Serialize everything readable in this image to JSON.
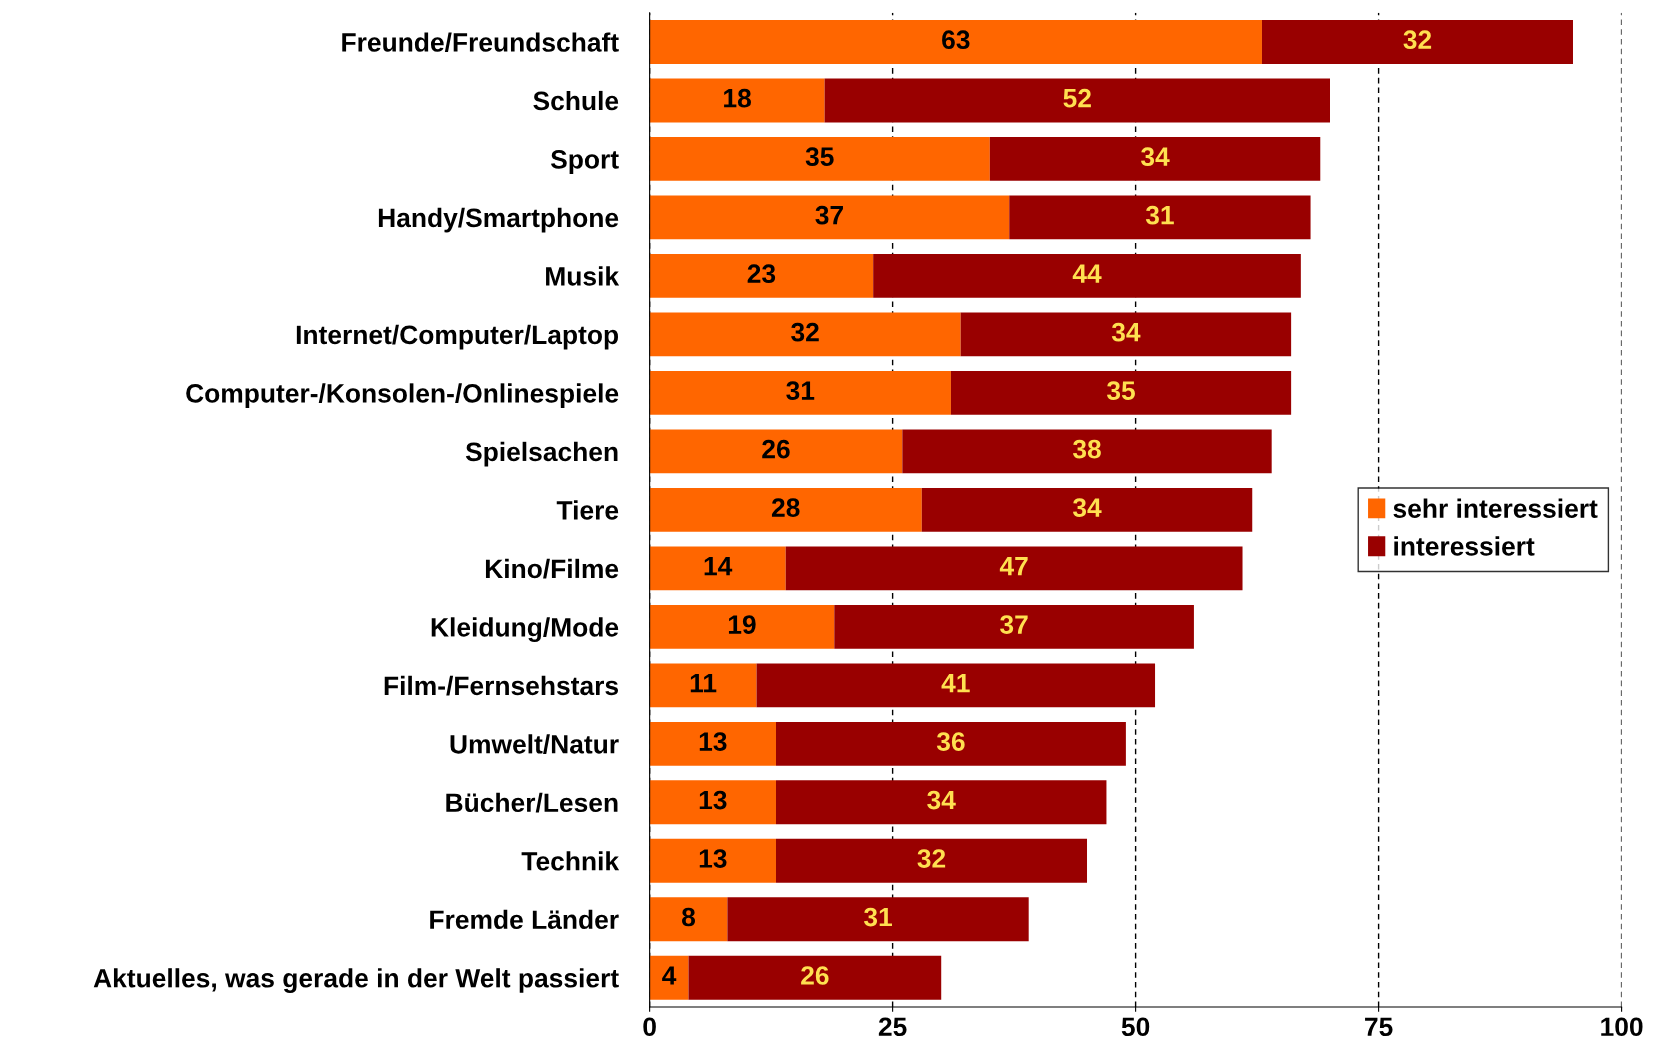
{
  "chart_data": {
    "type": "bar",
    "orientation": "horizontal",
    "stacked": true,
    "categories": [
      "Freunde/Freundschaft",
      "Schule",
      "Sport",
      "Handy/Smartphone",
      "Musik",
      "Internet/Computer/Laptop",
      "Computer-/Konsolen-/Onlinespiele",
      "Spielsachen",
      "Tiere",
      "Kino/Filme",
      "Kleidung/Mode",
      "Film-/Fernsehstars",
      "Umwelt/Natur",
      "Bücher/Lesen",
      "Technik",
      "Fremde Länder",
      "Aktuelles, was gerade in der Welt passiert"
    ],
    "series": [
      {
        "name": "sehr interessiert",
        "color": "#ff6600",
        "values": [
          63,
          18,
          35,
          37,
          23,
          32,
          31,
          26,
          28,
          14,
          19,
          11,
          13,
          13,
          13,
          8,
          4
        ]
      },
      {
        "name": "interessiert",
        "color": "#990000",
        "values": [
          32,
          52,
          34,
          31,
          44,
          34,
          35,
          38,
          34,
          47,
          37,
          41,
          36,
          34,
          32,
          31,
          26
        ]
      }
    ],
    "xlim": [
      0,
      100
    ],
    "xticks": [
      0,
      25,
      50,
      75,
      100
    ],
    "grid": "x",
    "legend": "right",
    "data_labels": true
  }
}
